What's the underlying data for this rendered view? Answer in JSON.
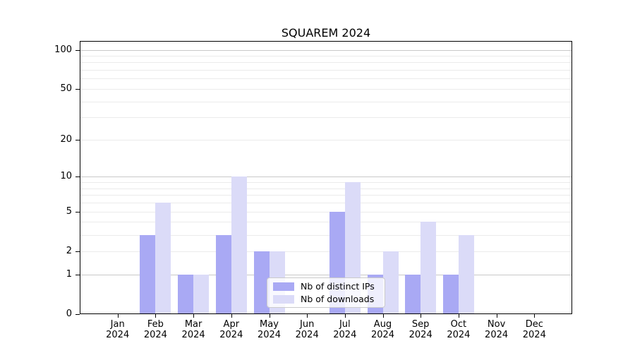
{
  "title": "SQUAREM 2024",
  "chart_data": {
    "type": "bar",
    "title": "SQUAREM 2024",
    "categories": [
      "Jan 2024",
      "Feb 2024",
      "Mar 2024",
      "Apr 2024",
      "May 2024",
      "Jun 2024",
      "Jul 2024",
      "Aug 2024",
      "Sep 2024",
      "Oct 2024",
      "Nov 2024",
      "Dec 2024"
    ],
    "series": [
      {
        "name": "Nb of distinct IPs",
        "color": "#a9a9f4",
        "values": [
          0,
          3,
          1,
          3,
          2,
          0,
          5,
          1,
          1,
          1,
          0,
          0
        ]
      },
      {
        "name": "Nb of downloads",
        "color": "#dbdbf8",
        "values": [
          0,
          6,
          1,
          10,
          2,
          0,
          9,
          2,
          4,
          3,
          0,
          0
        ]
      }
    ],
    "xlabel": "",
    "ylabel": "",
    "yscale": "log1p",
    "ylim": [
      0,
      117
    ],
    "ytick_labels": [
      "0",
      "1",
      "2",
      "5",
      "10",
      "20",
      "50",
      "100"
    ],
    "ytick_values": [
      0,
      1,
      2,
      5,
      10,
      20,
      50,
      100
    ],
    "gridlines_major": [
      1,
      10,
      100
    ],
    "gridlines_minor": [
      2,
      3,
      4,
      5,
      6,
      7,
      8,
      9,
      20,
      30,
      40,
      60,
      70,
      80,
      90
    ],
    "grid": "on",
    "legend_position": "lower-center",
    "colors": {
      "major_grid": "#c9c9c9",
      "minor_grid": "#ebebeb",
      "axis": "#000000",
      "background": "#ffffff"
    }
  }
}
